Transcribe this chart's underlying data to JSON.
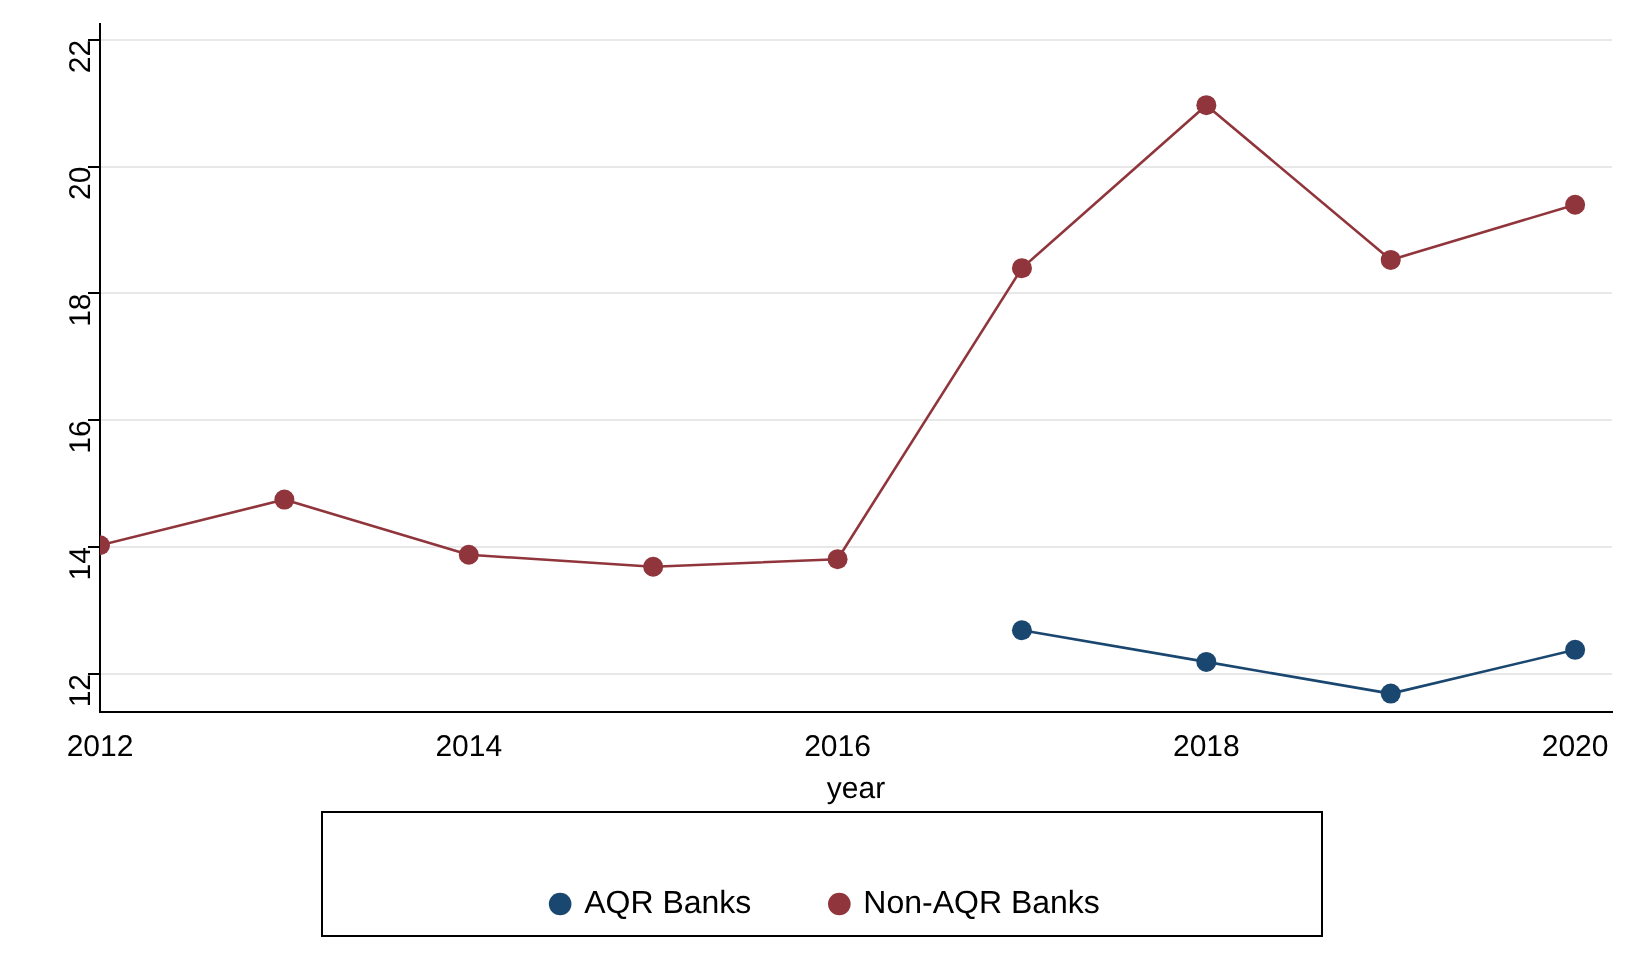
{
  "chart_data": {
    "type": "line",
    "xlabel": "year",
    "x": [
      2012,
      2013,
      2014,
      2015,
      2016,
      2017,
      2018,
      2019,
      2020
    ],
    "series": [
      {
        "name": "AQR Banks",
        "color": "#1a476f",
        "values": [
          null,
          null,
          null,
          null,
          null,
          12.69,
          12.19,
          11.69,
          12.38
        ]
      },
      {
        "name": "Non-AQR Banks",
        "color": "#90353b",
        "values": [
          14.03,
          14.75,
          13.88,
          13.69,
          13.81,
          18.4,
          20.97,
          18.53,
          19.4
        ]
      }
    ],
    "xlim": [
      2012,
      2020.2
    ],
    "xticks": [
      2012,
      2014,
      2016,
      2018,
      2020
    ],
    "ylim": [
      11.4,
      22.25
    ],
    "yticks": [
      12,
      14,
      16,
      18,
      20,
      22
    ],
    "grid": "y",
    "legend": "bottom",
    "marker": "circle",
    "line_style": "solid"
  }
}
